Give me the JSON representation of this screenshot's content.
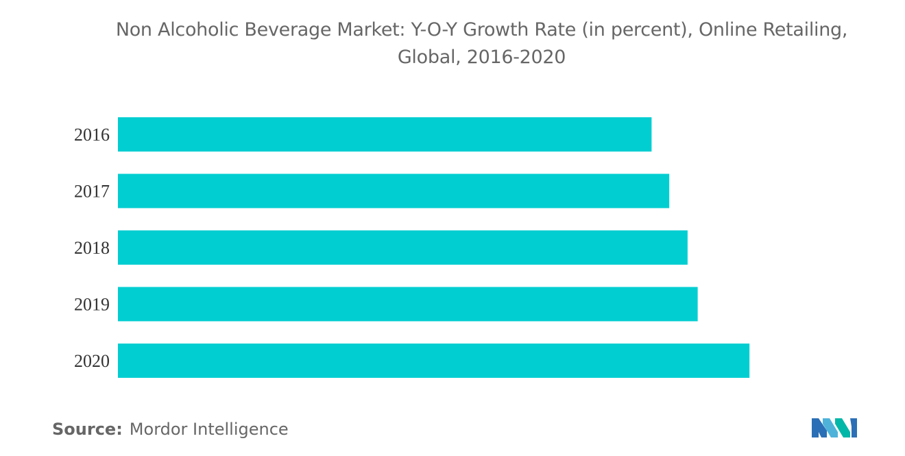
{
  "chart_data": {
    "type": "bar",
    "orientation": "horizontal",
    "title_line1": "Non Alcoholic Beverage Market: Y-O-Y Growth Rate (in percent), Online Retailing,",
    "title_line2": "Global, 2016-2020",
    "categories": [
      "2016",
      "2017",
      "2018",
      "2019",
      "2020"
    ],
    "values": [
      8.45,
      8.73,
      9.02,
      9.18,
      10.0
    ],
    "xlim": [
      0,
      10.4
    ],
    "grid": false,
    "legend": "none",
    "bar_color": "#00CED1"
  },
  "source": {
    "label": "Source:",
    "text": "Mordor Intelligence"
  },
  "logo_icon": "mordor-intelligence-logo-icon"
}
